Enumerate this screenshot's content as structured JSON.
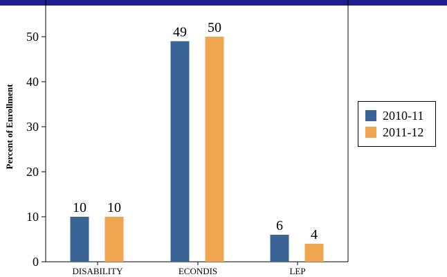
{
  "chart_data": {
    "type": "bar",
    "categories": [
      "DISABILITY",
      "ECONDIS",
      "LEP"
    ],
    "series": [
      {
        "name": "2010-11",
        "values": [
          10,
          49,
          6
        ],
        "color": "#3a6396"
      },
      {
        "name": "2011-12",
        "values": [
          10,
          50,
          4
        ],
        "color": "#f0a550"
      }
    ],
    "data_labels": [
      [
        "10",
        "49",
        "6"
      ],
      [
        "10",
        "50",
        "4"
      ]
    ],
    "ylabel": "Percent of Enrollment",
    "xlabel": "",
    "ylim": [
      0,
      56
    ],
    "yticks": [
      0,
      10,
      20,
      30,
      40,
      50
    ],
    "grid": false,
    "legend_position": "right"
  },
  "colors": {
    "header_bar": "#1e1e8c"
  }
}
